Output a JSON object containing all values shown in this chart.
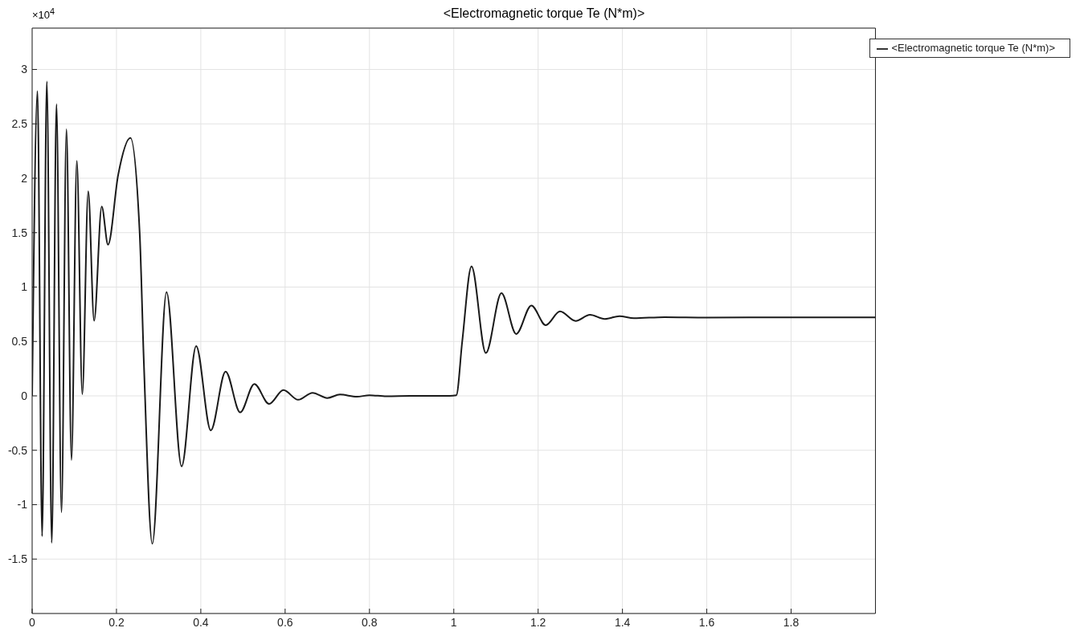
{
  "chart_data": {
    "type": "line",
    "title": "<Electromagnetic torque Te (N*m)>",
    "annotations": [
      "×10$^{4}$"
    ],
    "xlim": [
      0,
      2
    ],
    "xticks": [
      0,
      0.2,
      0.4,
      0.6,
      0.8,
      1,
      1.2,
      1.4,
      1.6,
      1.8
    ],
    "ylim": [
      -2,
      3.38
    ],
    "yticks": [
      -1.5,
      -1,
      -0.5,
      0,
      0.5,
      1,
      1.5,
      2,
      2.5,
      3
    ],
    "grid": true,
    "legend": "top right",
    "series": [
      {
        "name": "<Electromagnetic torque Te (N*m)>",
        "color": "#1a1a1a",
        "x": [
          0,
          0.0126,
          0.0237,
          0.0348,
          0.0466,
          0.0577,
          0.0696,
          0.0814,
          0.0933,
          0.106,
          0.119,
          0.133,
          0.147,
          0.165,
          0.18,
          0.204,
          0.233,
          0.255,
          0.265,
          0.285,
          0.3187,
          0.3545,
          0.389,
          0.4237,
          0.4588,
          0.4934,
          0.527,
          0.562,
          0.596,
          0.631,
          0.665,
          0.7,
          0.73,
          0.77,
          0.8,
          0.84,
          0.9,
          0.99,
          1.006,
          1.02,
          1.042,
          1.076,
          1.113,
          1.148,
          1.184,
          1.218,
          1.252,
          1.289,
          1.323,
          1.358,
          1.393,
          1.427,
          1.5,
          1.6,
          1.8,
          2.0
        ],
        "values": [
          0,
          2.8,
          -1.29,
          2.89,
          -1.35,
          2.68,
          -1.07,
          2.45,
          -0.59,
          2.16,
          0.015,
          1.88,
          0.69,
          1.74,
          1.39,
          2.03,
          2.37,
          1.5,
          0.3,
          -1.36,
          0.954,
          -0.648,
          0.458,
          -0.317,
          0.224,
          -0.152,
          0.109,
          -0.074,
          0.053,
          -0.036,
          0.028,
          -0.02,
          0.012,
          -0.008,
          0.006,
          -0.004,
          0,
          0,
          0.005,
          0.5,
          1.19,
          0.394,
          0.944,
          0.569,
          0.831,
          0.65,
          0.776,
          0.688,
          0.745,
          0.707,
          0.733,
          0.714,
          0.724,
          0.72,
          0.721,
          0.721
        ]
      }
    ]
  }
}
